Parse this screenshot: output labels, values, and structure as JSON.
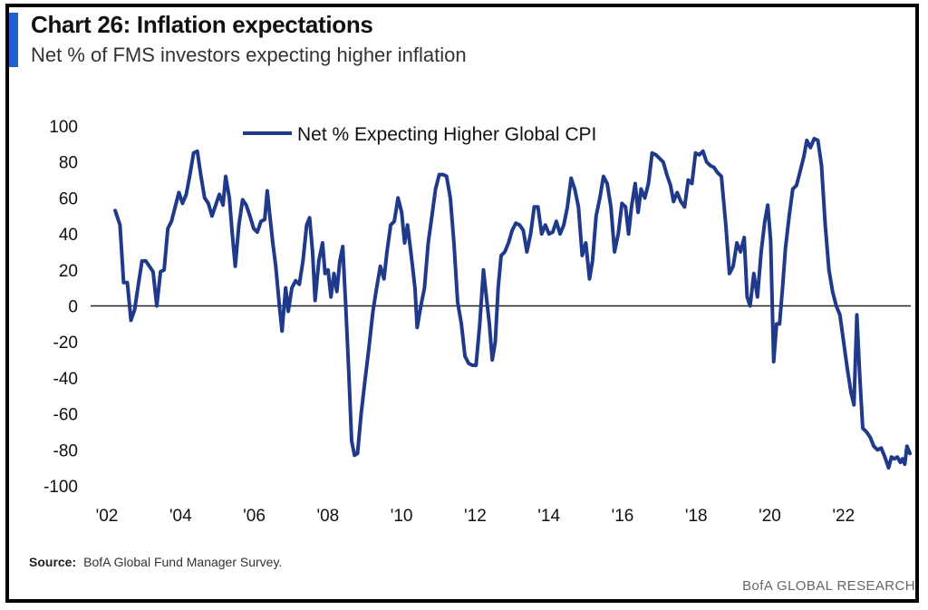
{
  "header": {
    "title": "Chart 26: Inflation expectations",
    "subtitle": "Net % of FMS investors expecting higher inflation"
  },
  "footer": {
    "source_label": "Source:",
    "source_text": "BofA Global Fund Manager Survey.",
    "brand": "BofA GLOBAL RESEARCH"
  },
  "colors": {
    "accent": "#1f5fd1",
    "series": "#1f3a8a",
    "zero_line": "#222222"
  },
  "chart_data": {
    "type": "line",
    "title": "",
    "xlabel": "",
    "ylabel": "",
    "ylim": [
      -100,
      100
    ],
    "yticks": [
      100,
      80,
      60,
      40,
      20,
      0,
      -20,
      -40,
      -60,
      -80,
      -100
    ],
    "xlim": [
      2002.0,
      2023.9
    ],
    "xticks": [
      {
        "value": 2002,
        "label": "'02"
      },
      {
        "value": 2004,
        "label": "'04"
      },
      {
        "value": 2006,
        "label": "'06"
      },
      {
        "value": 2008,
        "label": "'08"
      },
      {
        "value": 2010,
        "label": "'10"
      },
      {
        "value": 2012,
        "label": "'12"
      },
      {
        "value": 2014,
        "label": "'14"
      },
      {
        "value": 2016,
        "label": "'16"
      },
      {
        "value": 2018,
        "label": "'18"
      },
      {
        "value": 2020,
        "label": "'20"
      },
      {
        "value": 2022,
        "label": "'22"
      }
    ],
    "legend_position": "top-center",
    "grid": false,
    "series": [
      {
        "name": "Net % Expecting Higher Global CPI",
        "points": [
          [
            2002.42,
            53
          ],
          [
            2002.55,
            45
          ],
          [
            2002.65,
            13
          ],
          [
            2002.75,
            13
          ],
          [
            2002.85,
            -8
          ],
          [
            2002.95,
            -2
          ],
          [
            2003.05,
            12
          ],
          [
            2003.15,
            25
          ],
          [
            2003.25,
            25
          ],
          [
            2003.35,
            22
          ],
          [
            2003.45,
            19
          ],
          [
            2003.55,
            0
          ],
          [
            2003.65,
            19
          ],
          [
            2003.75,
            20
          ],
          [
            2003.85,
            43
          ],
          [
            2003.95,
            47
          ],
          [
            2004.05,
            55
          ],
          [
            2004.15,
            63
          ],
          [
            2004.25,
            57
          ],
          [
            2004.35,
            62
          ],
          [
            2004.45,
            73
          ],
          [
            2004.55,
            85
          ],
          [
            2004.65,
            86
          ],
          [
            2004.75,
            72
          ],
          [
            2004.85,
            60
          ],
          [
            2004.95,
            57
          ],
          [
            2005.05,
            50
          ],
          [
            2005.15,
            56
          ],
          [
            2005.25,
            62
          ],
          [
            2005.35,
            56
          ],
          [
            2005.42,
            72
          ],
          [
            2005.52,
            60
          ],
          [
            2005.6,
            40
          ],
          [
            2005.68,
            22
          ],
          [
            2005.78,
            45
          ],
          [
            2005.88,
            59
          ],
          [
            2005.98,
            56
          ],
          [
            2006.08,
            50
          ],
          [
            2006.18,
            43
          ],
          [
            2006.28,
            41
          ],
          [
            2006.38,
            47
          ],
          [
            2006.48,
            48
          ],
          [
            2006.55,
            64
          ],
          [
            2006.62,
            50
          ],
          [
            2006.7,
            35
          ],
          [
            2006.78,
            22
          ],
          [
            2006.88,
            0
          ],
          [
            2006.95,
            -14
          ],
          [
            2007.05,
            10
          ],
          [
            2007.12,
            -3
          ],
          [
            2007.22,
            10
          ],
          [
            2007.32,
            14
          ],
          [
            2007.42,
            12
          ],
          [
            2007.52,
            25
          ],
          [
            2007.62,
            45
          ],
          [
            2007.7,
            49
          ],
          [
            2007.78,
            30
          ],
          [
            2007.85,
            3
          ],
          [
            2007.95,
            25
          ],
          [
            2008.05,
            35
          ],
          [
            2008.12,
            18
          ],
          [
            2008.2,
            20
          ],
          [
            2008.28,
            5
          ],
          [
            2008.36,
            18
          ],
          [
            2008.44,
            8
          ],
          [
            2008.52,
            25
          ],
          [
            2008.6,
            33
          ],
          [
            2008.68,
            0
          ],
          [
            2008.76,
            -35
          ],
          [
            2008.84,
            -75
          ],
          [
            2008.92,
            -83
          ],
          [
            2009.0,
            -82
          ],
          [
            2009.1,
            -60
          ],
          [
            2009.2,
            -42
          ],
          [
            2009.3,
            -25
          ],
          [
            2009.42,
            -3
          ],
          [
            2009.52,
            10
          ],
          [
            2009.62,
            22
          ],
          [
            2009.72,
            15
          ],
          [
            2009.8,
            30
          ],
          [
            2009.9,
            45
          ],
          [
            2010.0,
            47
          ],
          [
            2010.1,
            60
          ],
          [
            2010.2,
            52
          ],
          [
            2010.28,
            35
          ],
          [
            2010.36,
            45
          ],
          [
            2010.46,
            28
          ],
          [
            2010.56,
            10
          ],
          [
            2010.62,
            -12
          ],
          [
            2010.72,
            0
          ],
          [
            2010.82,
            10
          ],
          [
            2010.92,
            35
          ],
          [
            2011.02,
            50
          ],
          [
            2011.12,
            65
          ],
          [
            2011.22,
            73
          ],
          [
            2011.32,
            73
          ],
          [
            2011.42,
            72
          ],
          [
            2011.52,
            60
          ],
          [
            2011.62,
            35
          ],
          [
            2011.72,
            2
          ],
          [
            2011.82,
            -10
          ],
          [
            2011.92,
            -28
          ],
          [
            2012.02,
            -32
          ],
          [
            2012.12,
            -33
          ],
          [
            2012.22,
            -33
          ],
          [
            2012.32,
            -10
          ],
          [
            2012.42,
            20
          ],
          [
            2012.5,
            5
          ],
          [
            2012.58,
            -10
          ],
          [
            2012.66,
            -30
          ],
          [
            2012.74,
            -20
          ],
          [
            2012.82,
            10
          ],
          [
            2012.9,
            28
          ],
          [
            2013.0,
            30
          ],
          [
            2013.1,
            35
          ],
          [
            2013.2,
            42
          ],
          [
            2013.3,
            46
          ],
          [
            2013.4,
            45
          ],
          [
            2013.5,
            42
          ],
          [
            2013.6,
            30
          ],
          [
            2013.7,
            40
          ],
          [
            2013.8,
            55
          ],
          [
            2013.9,
            55
          ],
          [
            2014.0,
            40
          ],
          [
            2014.1,
            45
          ],
          [
            2014.2,
            40
          ],
          [
            2014.3,
            41
          ],
          [
            2014.4,
            47
          ],
          [
            2014.5,
            40
          ],
          [
            2014.6,
            45
          ],
          [
            2014.7,
            55
          ],
          [
            2014.8,
            71
          ],
          [
            2014.9,
            65
          ],
          [
            2015.0,
            55
          ],
          [
            2015.1,
            28
          ],
          [
            2015.2,
            35
          ],
          [
            2015.3,
            15
          ],
          [
            2015.38,
            25
          ],
          [
            2015.48,
            50
          ],
          [
            2015.58,
            60
          ],
          [
            2015.68,
            72
          ],
          [
            2015.78,
            68
          ],
          [
            2015.88,
            55
          ],
          [
            2015.98,
            30
          ],
          [
            2016.08,
            40
          ],
          [
            2016.18,
            57
          ],
          [
            2016.28,
            55
          ],
          [
            2016.36,
            40
          ],
          [
            2016.44,
            55
          ],
          [
            2016.54,
            68
          ],
          [
            2016.62,
            52
          ],
          [
            2016.7,
            65
          ],
          [
            2016.8,
            60
          ],
          [
            2016.9,
            68
          ],
          [
            2017.0,
            85
          ],
          [
            2017.1,
            84
          ],
          [
            2017.2,
            82
          ],
          [
            2017.3,
            80
          ],
          [
            2017.4,
            73
          ],
          [
            2017.5,
            67
          ],
          [
            2017.58,
            58
          ],
          [
            2017.68,
            63
          ],
          [
            2017.78,
            58
          ],
          [
            2017.88,
            55
          ],
          [
            2017.98,
            70
          ],
          [
            2018.08,
            68
          ],
          [
            2018.18,
            85
          ],
          [
            2018.28,
            84
          ],
          [
            2018.38,
            86
          ],
          [
            2018.48,
            80
          ],
          [
            2018.58,
            78
          ],
          [
            2018.68,
            77
          ],
          [
            2018.78,
            74
          ],
          [
            2018.88,
            72
          ],
          [
            2019.0,
            45
          ],
          [
            2019.1,
            18
          ],
          [
            2019.2,
            22
          ],
          [
            2019.3,
            35
          ],
          [
            2019.4,
            30
          ],
          [
            2019.5,
            38
          ],
          [
            2019.58,
            5
          ],
          [
            2019.66,
            0
          ],
          [
            2019.76,
            18
          ],
          [
            2019.86,
            5
          ],
          [
            2019.96,
            30
          ],
          [
            2020.06,
            47
          ],
          [
            2020.14,
            56
          ],
          [
            2020.22,
            36
          ],
          [
            2020.3,
            -31
          ],
          [
            2020.38,
            -10
          ],
          [
            2020.46,
            -10
          ],
          [
            2020.54,
            10
          ],
          [
            2020.62,
            32
          ],
          [
            2020.72,
            50
          ],
          [
            2020.82,
            65
          ],
          [
            2020.92,
            67
          ],
          [
            2021.02,
            75
          ],
          [
            2021.12,
            83
          ],
          [
            2021.2,
            92
          ],
          [
            2021.3,
            88
          ],
          [
            2021.4,
            93
          ],
          [
            2021.5,
            92
          ],
          [
            2021.6,
            78
          ],
          [
            2021.7,
            45
          ],
          [
            2021.8,
            20
          ],
          [
            2021.9,
            8
          ],
          [
            2022.0,
            0
          ],
          [
            2022.1,
            -5
          ],
          [
            2022.2,
            -20
          ],
          [
            2022.3,
            -35
          ],
          [
            2022.4,
            -48
          ],
          [
            2022.48,
            -55
          ],
          [
            2022.56,
            -5
          ],
          [
            2022.64,
            -40
          ],
          [
            2022.72,
            -68
          ],
          [
            2022.82,
            -70
          ],
          [
            2022.92,
            -73
          ],
          [
            2023.02,
            -78
          ],
          [
            2023.12,
            -80
          ],
          [
            2023.22,
            -79
          ],
          [
            2023.32,
            -84
          ],
          [
            2023.42,
            -90
          ],
          [
            2023.5,
            -84
          ],
          [
            2023.58,
            -85
          ],
          [
            2023.66,
            -84
          ],
          [
            2023.74,
            -87
          ],
          [
            2023.8,
            -85
          ],
          [
            2023.86,
            -88
          ],
          [
            2023.92,
            -78
          ],
          [
            2024.0,
            -82
          ]
        ]
      }
    ]
  }
}
